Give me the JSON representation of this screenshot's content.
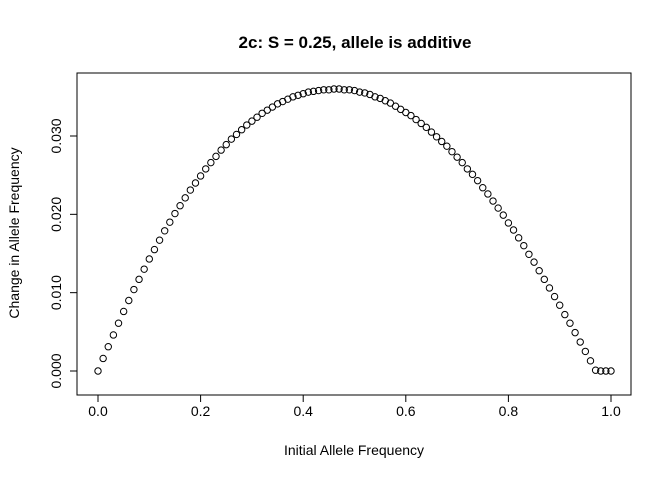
{
  "chart_data": {
    "type": "scatter",
    "title": "2c: S = 0.25, allele is additive",
    "xlabel": "Initial Allele Frequency",
    "ylabel": "Change in Allele Frequency",
    "xlim": [
      0.0,
      1.0
    ],
    "ylim": [
      0.0,
      0.036
    ],
    "x_ticks": [
      "0.0",
      "0.2",
      "0.4",
      "0.6",
      "0.8",
      "1.0"
    ],
    "y_ticks": [
      "0.000",
      "0.010",
      "0.020",
      "0.030"
    ],
    "grid": false,
    "legend": "none",
    "marker": "open-circle",
    "model": "dp = s*p*(1-p)*(0.5 + 0.5*(1-2p)) / (1 - s*(1-p)*(2-... )) ; additive selection, s = 0.25",
    "x": [
      0.0,
      0.01,
      0.02,
      0.03,
      0.04,
      0.05,
      0.06,
      0.07,
      0.08,
      0.09,
      0.1,
      0.11,
      0.12,
      0.13,
      0.14,
      0.15,
      0.16,
      0.17,
      0.18,
      0.19,
      0.2,
      0.21,
      0.22,
      0.23,
      0.24,
      0.25,
      0.26,
      0.27,
      0.28,
      0.29,
      0.3,
      0.31,
      0.32,
      0.33,
      0.34,
      0.35,
      0.36,
      0.37,
      0.38,
      0.39,
      0.4,
      0.41,
      0.42,
      0.43,
      0.44,
      0.45,
      0.46,
      0.47,
      0.48,
      0.49,
      0.5,
      0.51,
      0.52,
      0.53,
      0.54,
      0.55,
      0.56,
      0.57,
      0.58,
      0.59,
      0.6,
      0.61,
      0.62,
      0.63,
      0.64,
      0.65,
      0.66,
      0.67,
      0.68,
      0.69,
      0.7,
      0.71,
      0.72,
      0.73,
      0.74,
      0.75,
      0.76,
      0.77,
      0.78,
      0.79,
      0.8,
      0.81,
      0.82,
      0.83,
      0.84,
      0.85,
      0.86,
      0.87,
      0.88,
      0.89,
      0.9,
      0.91,
      0.92,
      0.93,
      0.94,
      0.95,
      0.96,
      0.97,
      0.98,
      0.99,
      1.0
    ],
    "y": [
      0.0,
      0.0016,
      0.0031,
      0.0046,
      0.0061,
      0.0076,
      0.009,
      0.0104,
      0.0117,
      0.013,
      0.0143,
      0.0155,
      0.0167,
      0.0179,
      0.019,
      0.0201,
      0.0211,
      0.0221,
      0.0231,
      0.024,
      0.0249,
      0.0258,
      0.0266,
      0.0274,
      0.0282,
      0.0289,
      0.0296,
      0.0302,
      0.0308,
      0.0314,
      0.0319,
      0.0324,
      0.0329,
      0.0333,
      0.0337,
      0.0341,
      0.0344,
      0.0347,
      0.035,
      0.0352,
      0.0354,
      0.0356,
      0.0357,
      0.0358,
      0.0359,
      0.0359,
      0.036,
      0.036,
      0.0359,
      0.0359,
      0.0358,
      0.0356,
      0.0355,
      0.0353,
      0.035,
      0.0348,
      0.0345,
      0.0342,
      0.0338,
      0.0334,
      0.033,
      0.0326,
      0.0321,
      0.0316,
      0.0311,
      0.0305,
      0.0299,
      0.0293,
      0.0287,
      0.028,
      0.0273,
      0.0266,
      0.0258,
      0.0251,
      0.0243,
      0.0234,
      0.0226,
      0.0217,
      0.0208,
      0.0199,
      0.0189,
      0.018,
      0.017,
      0.016,
      0.0149,
      0.0139,
      0.0128,
      0.0117,
      0.0106,
      0.0095,
      0.0084,
      0.0072,
      0.0061,
      0.0049,
      0.0037,
      0.0025,
      0.0013,
      0.0001,
      0.0,
      0.0,
      0.0
    ]
  }
}
